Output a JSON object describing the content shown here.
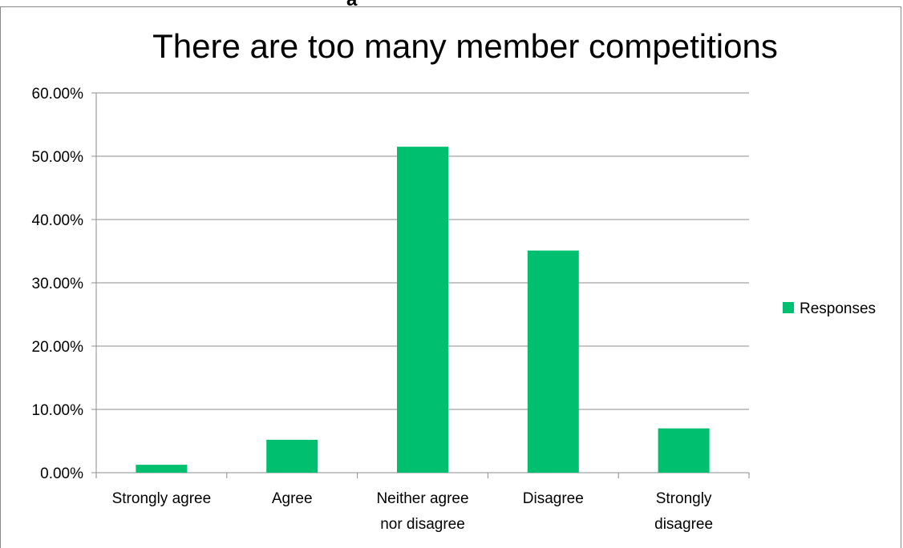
{
  "header_fragment": "a",
  "chart_data": {
    "type": "bar",
    "title": "There are too many member competitions",
    "categories": [
      [
        "Strongly agree"
      ],
      [
        "Agree"
      ],
      [
        "Neither agree",
        "nor disagree"
      ],
      [
        "Disagree"
      ],
      [
        "Strongly",
        "disagree"
      ]
    ],
    "series": [
      {
        "name": "Responses",
        "color": "#00BF6F",
        "values": [
          0.0125,
          0.052,
          0.515,
          0.351,
          0.07
        ]
      }
    ],
    "ylim": [
      0,
      0.6
    ],
    "yticks": [
      0,
      0.1,
      0.2,
      0.3,
      0.4,
      0.5,
      0.6
    ],
    "ytick_labels": [
      "0.00%",
      "10.00%",
      "20.00%",
      "30.00%",
      "40.00%",
      "50.00%",
      "60.00%"
    ],
    "xlabel": "",
    "ylabel": "",
    "grid": true,
    "legend_position": "right"
  }
}
